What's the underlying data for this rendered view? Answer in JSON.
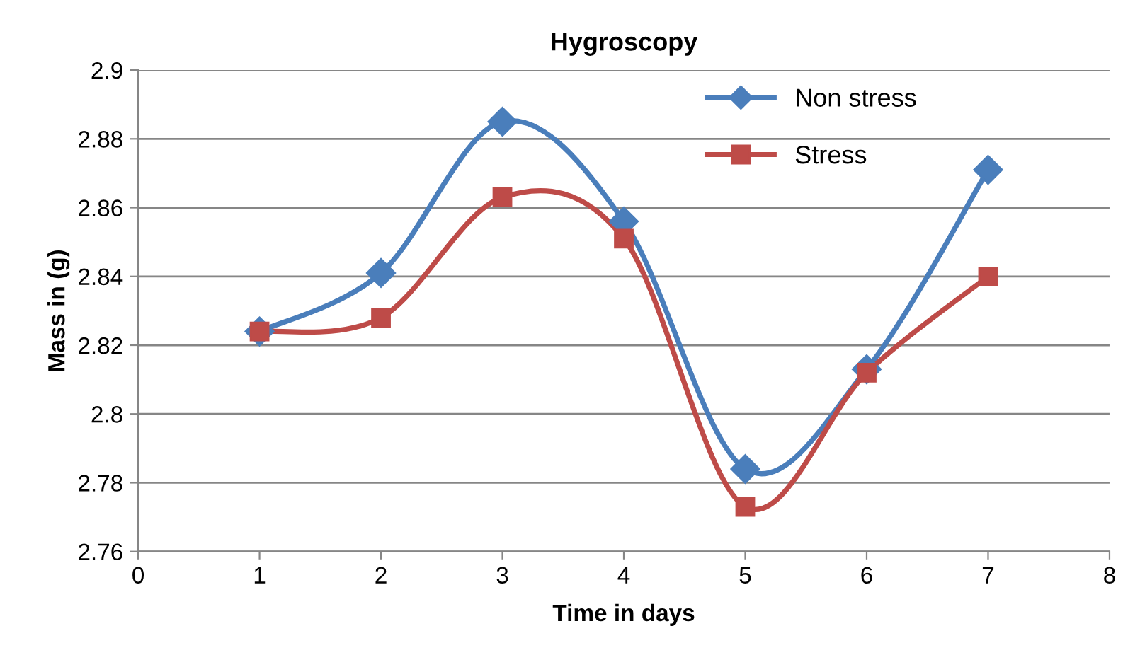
{
  "chart_data": {
    "type": "line",
    "title": "Hygroscopy",
    "xlabel": "Time in days",
    "ylabel": "Mass in (g)",
    "x": [
      1,
      2,
      3,
      4,
      5,
      6,
      7
    ],
    "series": [
      {
        "name": "Non stress",
        "color": "#4a7ebb",
        "marker": "diamond",
        "values": [
          2.824,
          2.841,
          2.885,
          2.856,
          2.784,
          2.813,
          2.871
        ]
      },
      {
        "name": "Stress",
        "color": "#be4b48",
        "marker": "square",
        "values": [
          2.824,
          2.828,
          2.863,
          2.851,
          2.773,
          2.812,
          2.84
        ]
      }
    ],
    "xlim": [
      0,
      8
    ],
    "xticks": [
      0,
      1,
      2,
      3,
      4,
      5,
      6,
      7,
      8
    ],
    "ylim": [
      2.76,
      2.9
    ],
    "yticks": [
      2.76,
      2.78,
      2.8,
      2.82,
      2.84,
      2.86,
      2.88,
      2.9
    ],
    "grid": "y",
    "legend": "top right",
    "line_style": "solid"
  }
}
